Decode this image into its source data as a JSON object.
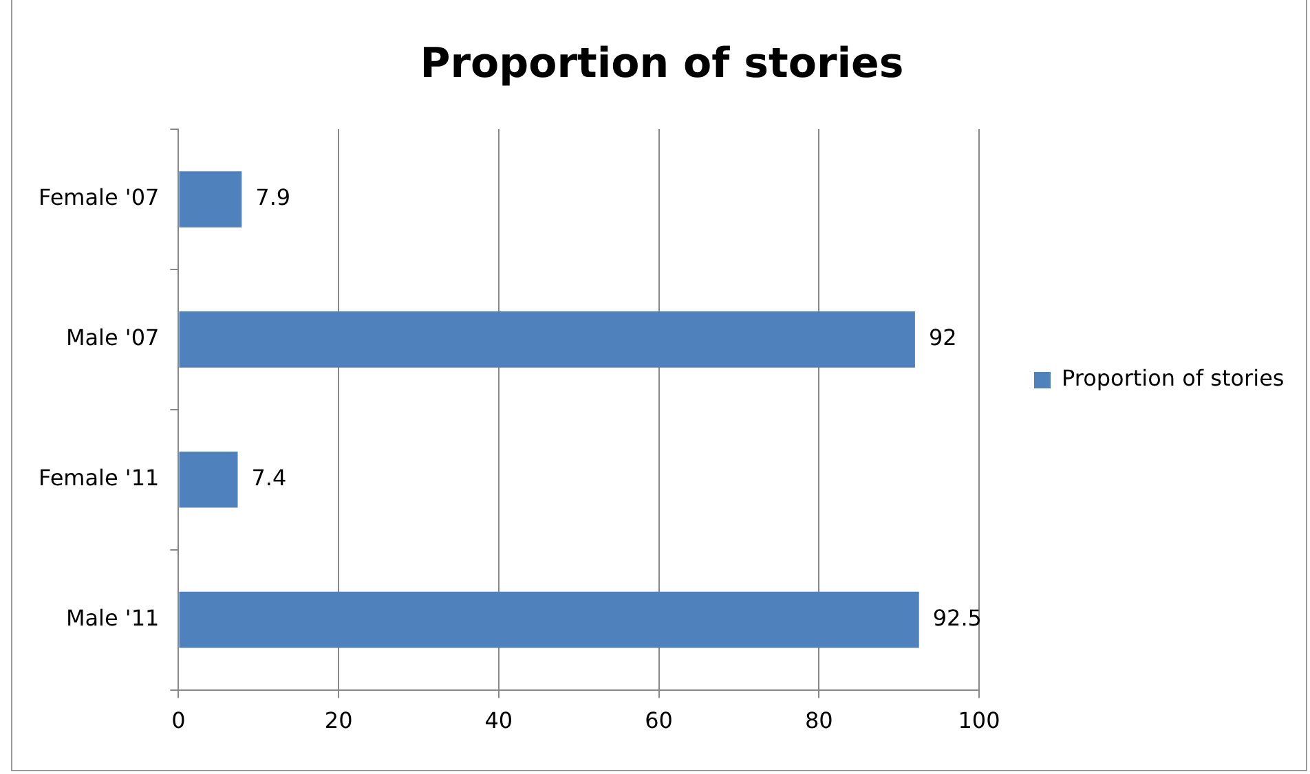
{
  "chart_data": {
    "type": "bar",
    "orientation": "horizontal",
    "title": "Proportion of stories",
    "categories": [
      "Female '07",
      "Male '07",
      "Female '11",
      "Male '11"
    ],
    "series": [
      {
        "name": "Proportion of stories",
        "color": "#4f81bd",
        "values": [
          7.9,
          92,
          7.4,
          92.5
        ]
      }
    ],
    "xlim": [
      0,
      100
    ],
    "xticks": [
      0,
      20,
      40,
      60,
      80,
      100
    ],
    "grid": "x",
    "legend": "right",
    "data_labels": true
  }
}
